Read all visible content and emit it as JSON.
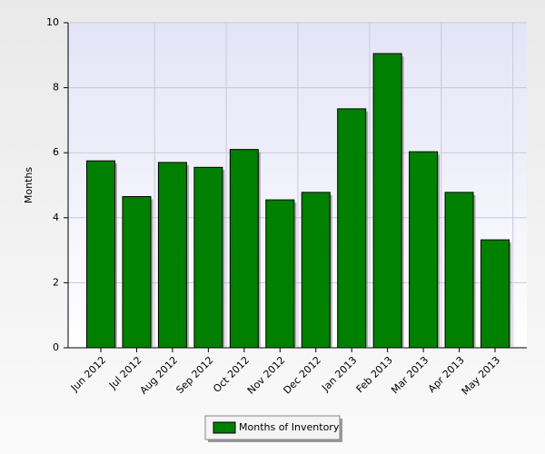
{
  "chart_data": {
    "type": "bar",
    "y_label": "Months",
    "categories": [
      "Jun 2012",
      "Jul 2012",
      "Aug 2012",
      "Sep 2012",
      "Oct 2012",
      "Nov 2012",
      "Dec 2012",
      "Jan 2013",
      "Feb 2013",
      "Mar 2013",
      "Apr 2013",
      "May 2013"
    ],
    "series": [
      {
        "name": "Months of Inventory",
        "color": "#008000",
        "values": [
          5.75,
          4.65,
          5.7,
          5.55,
          6.1,
          4.55,
          4.78,
          7.35,
          9.05,
          6.03,
          4.78,
          3.32
        ]
      }
    ],
    "ylim": [
      0,
      10
    ],
    "yticks": [
      0,
      2,
      4,
      6,
      8,
      10
    ],
    "grid": true
  }
}
